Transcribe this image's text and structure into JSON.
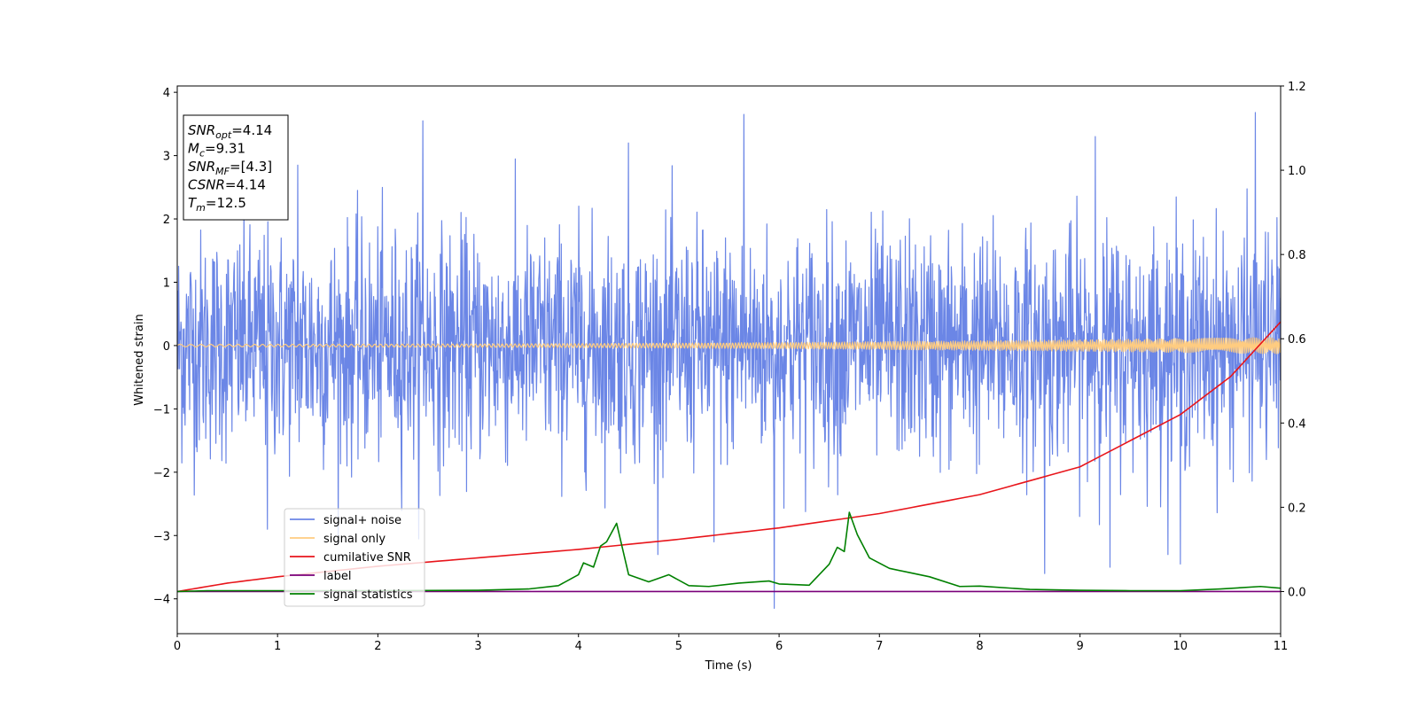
{
  "chart_data": {
    "type": "line",
    "title": "",
    "xlabel": "Time (s)",
    "ylabel": "Whitened strain",
    "y2label": "",
    "xlim": [
      0,
      11
    ],
    "ylim": [
      -4.55,
      4.1
    ],
    "y2lim": [
      -0.1,
      1.2
    ],
    "grid": false,
    "legend_placement": "lower-left",
    "x_ticks": [
      0,
      1,
      2,
      3,
      4,
      5,
      6,
      7,
      8,
      9,
      10,
      11
    ],
    "x_tick_labels": [
      "0",
      "1",
      "2",
      "3",
      "4",
      "5",
      "6",
      "7",
      "8",
      "9",
      "10",
      "11"
    ],
    "y_ticks": [
      -4,
      -3,
      -2,
      -1,
      0,
      1,
      2,
      3,
      4
    ],
    "y_tick_labels": [
      "−4",
      "−3",
      "−2",
      "−1",
      "0",
      "1",
      "2",
      "3",
      "4"
    ],
    "y2_ticks": [
      0.0,
      0.2,
      0.4,
      0.6,
      0.8,
      1.0,
      1.2
    ],
    "y2_tick_labels": [
      "0.0",
      "0.2",
      "0.4",
      "0.6",
      "0.8",
      "1.0",
      "1.2"
    ],
    "info_box": [
      {
        "symbol": "SNR",
        "sub": "opt",
        "value": "=4.14"
      },
      {
        "symbol": "M",
        "sub": "c",
        "value": "=9.31"
      },
      {
        "symbol": "SNR",
        "sub": "MF",
        "value": "=[4.3]"
      },
      {
        "symbol": "CSNR",
        "sub": "",
        "value": "=4.14"
      },
      {
        "symbol": "T",
        "sub": "m",
        "value": "=12.5"
      }
    ],
    "series": [
      {
        "name": "signal+ noise",
        "axis": "left",
        "color": "#6b86e6",
        "kind": "noise",
        "band_mean": 0.0,
        "band_sigma": 0.9,
        "samples": 2400,
        "peaks": [
          {
            "x": 2.45,
            "y": 3.55
          },
          {
            "x": 5.65,
            "y": 3.65
          },
          {
            "x": 10.75,
            "y": 3.68
          },
          {
            "x": 9.15,
            "y": 3.3
          },
          {
            "x": 1.2,
            "y": 2.85
          },
          {
            "x": 4.5,
            "y": 3.2
          },
          {
            "x": 5.95,
            "y": -4.15
          },
          {
            "x": 9.3,
            "y": -3.5
          },
          {
            "x": 8.65,
            "y": -3.6
          },
          {
            "x": 10.0,
            "y": -3.45
          },
          {
            "x": 5.35,
            "y": -3.1
          },
          {
            "x": 0.9,
            "y": -2.9
          }
        ]
      },
      {
        "name": "signal only",
        "axis": "left",
        "color": "#ffcc80",
        "kind": "chirp",
        "amplitude_start": 0.02,
        "amplitude_end": 0.13
      },
      {
        "name": "cumilative SNR",
        "axis": "right",
        "color": "#e8151b",
        "x": [
          0,
          0.5,
          1,
          2,
          3,
          4,
          5,
          6,
          7,
          8,
          9,
          10,
          10.5,
          11
        ],
        "y": [
          0.0,
          0.02,
          0.035,
          0.06,
          0.08,
          0.1,
          0.124,
          0.151,
          0.185,
          0.23,
          0.296,
          0.42,
          0.51,
          0.64
        ]
      },
      {
        "name": "label",
        "axis": "right",
        "color": "#7a007a",
        "x": [
          0,
          11
        ],
        "y": [
          0,
          0
        ]
      },
      {
        "name": "signal statistics",
        "axis": "right",
        "color": "#008000",
        "x": [
          0,
          0.3,
          1,
          2,
          3,
          3.5,
          3.8,
          4.0,
          4.05,
          4.15,
          4.22,
          4.28,
          4.38,
          4.5,
          4.7,
          4.9,
          5.1,
          5.3,
          5.6,
          5.9,
          6.0,
          6.3,
          6.5,
          6.58,
          6.65,
          6.7,
          6.78,
          6.9,
          7.1,
          7.3,
          7.5,
          7.8,
          8.0,
          8.5,
          9,
          9.5,
          10,
          10.4,
          10.8,
          11
        ],
        "y": [
          0.0,
          0.002,
          0.002,
          0.002,
          0.003,
          0.006,
          0.014,
          0.04,
          0.068,
          0.058,
          0.108,
          0.118,
          0.162,
          0.04,
          0.023,
          0.04,
          0.014,
          0.012,
          0.02,
          0.025,
          0.018,
          0.015,
          0.065,
          0.105,
          0.095,
          0.188,
          0.135,
          0.08,
          0.055,
          0.045,
          0.035,
          0.012,
          0.013,
          0.005,
          0.003,
          0.002,
          0.002,
          0.006,
          0.012,
          0.008
        ]
      }
    ]
  }
}
